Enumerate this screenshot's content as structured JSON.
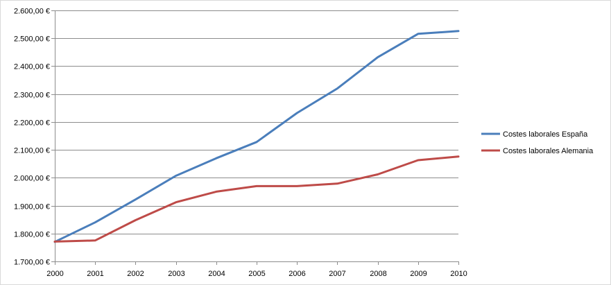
{
  "chart_data": {
    "type": "line",
    "title": "",
    "xlabel": "",
    "ylabel": "",
    "x": [
      "2000",
      "2001",
      "2002",
      "2003",
      "2004",
      "2005",
      "2006",
      "2007",
      "2008",
      "2009",
      "2010"
    ],
    "series": [
      {
        "name": "Costes laborales España",
        "color": "#4a7ebb",
        "values": [
          1770,
          1840,
          1922,
          2007,
          2070,
          2128,
          2232,
          2320,
          2432,
          2516,
          2526
        ]
      },
      {
        "name": "Costes laborales Alemania",
        "color": "#be4b48",
        "values": [
          1771,
          1775,
          1848,
          1912,
          1950,
          1970,
          1970,
          1979,
          2012,
          2063,
          2076
        ]
      }
    ],
    "ylim": [
      1700,
      2600
    ],
    "y_ticks": [
      1700,
      1800,
      1900,
      2000,
      2100,
      2200,
      2300,
      2400,
      2500,
      2600
    ],
    "y_tick_labels": [
      "1.700,00 €",
      "1.800,00 €",
      "1.900,00 €",
      "2.000,00 €",
      "2.100,00 €",
      "2.200,00 €",
      "2.300,00 €",
      "2.400,00 €",
      "2.500,00 €",
      "2.600,00 €"
    ],
    "grid": true,
    "legend_position": "right"
  }
}
